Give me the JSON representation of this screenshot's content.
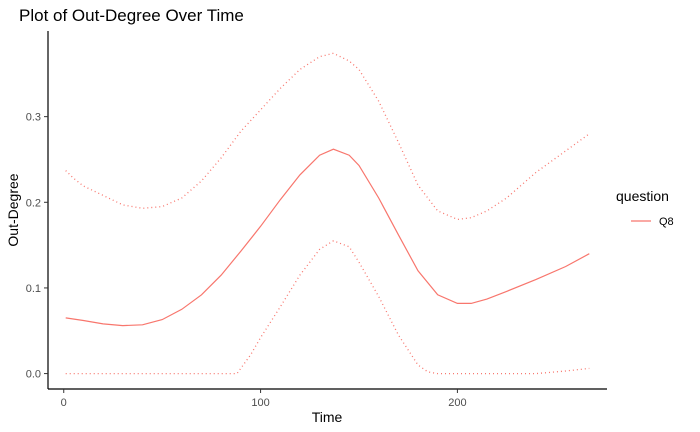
{
  "chart_data": {
    "type": "line",
    "title": "Plot of Out-Degree Over Time",
    "xlabel": "Time",
    "ylabel": "Out-Degree",
    "xlim": [
      -8,
      276
    ],
    "ylim": [
      -0.018,
      0.4
    ],
    "x_ticks": [
      0,
      100,
      200
    ],
    "y_ticks": [
      0.0,
      0.1,
      0.2,
      0.3
    ],
    "x_tick_labels": [
      "0",
      "100",
      "200"
    ],
    "y_tick_labels": [
      "0.0",
      "0.1",
      "0.2",
      "0.3"
    ],
    "grid": false,
    "legend": {
      "title": "question",
      "position": "right",
      "entries": [
        "Q8"
      ]
    },
    "series": [
      {
        "name": "Q8",
        "role": "fit",
        "style": "solid",
        "color": "#f8766d",
        "x": [
          1,
          10,
          20,
          30,
          40,
          50,
          60,
          70,
          80,
          90,
          100,
          110,
          120,
          130,
          137,
          145,
          150,
          160,
          170,
          180,
          190,
          200,
          207,
          215,
          225,
          240,
          255,
          267
        ],
        "y": [
          0.065,
          0.062,
          0.058,
          0.056,
          0.057,
          0.063,
          0.075,
          0.092,
          0.115,
          0.143,
          0.172,
          0.203,
          0.232,
          0.255,
          0.262,
          0.255,
          0.243,
          0.205,
          0.162,
          0.12,
          0.092,
          0.082,
          0.082,
          0.087,
          0.096,
          0.11,
          0.125,
          0.14
        ]
      },
      {
        "name": "Q8",
        "role": "upper",
        "style": "dotted",
        "color": "#f8766d",
        "x": [
          1,
          5,
          10,
          20,
          30,
          40,
          50,
          60,
          70,
          80,
          90,
          100,
          110,
          120,
          130,
          137,
          145,
          150,
          160,
          170,
          180,
          190,
          200,
          207,
          215,
          225,
          240,
          255,
          267
        ],
        "y": [
          0.237,
          0.228,
          0.219,
          0.208,
          0.197,
          0.193,
          0.195,
          0.205,
          0.225,
          0.252,
          0.283,
          0.308,
          0.333,
          0.355,
          0.37,
          0.374,
          0.365,
          0.355,
          0.318,
          0.27,
          0.22,
          0.19,
          0.18,
          0.182,
          0.19,
          0.205,
          0.235,
          0.26,
          0.28
        ]
      },
      {
        "name": "Q8",
        "role": "lower",
        "style": "dotted",
        "color": "#f8766d",
        "x": [
          1,
          20,
          40,
          60,
          80,
          88,
          95,
          100,
          110,
          120,
          130,
          137,
          145,
          150,
          160,
          170,
          180,
          185,
          190,
          200,
          210,
          220,
          240,
          255,
          267
        ],
        "y": [
          0.0,
          0.0,
          0.0,
          0.0,
          0.0,
          0.0,
          0.022,
          0.042,
          0.078,
          0.115,
          0.145,
          0.155,
          0.148,
          0.13,
          0.09,
          0.045,
          0.01,
          0.002,
          0.0,
          0.0,
          0.0,
          0.0,
          0.0,
          0.003,
          0.006
        ]
      }
    ]
  }
}
